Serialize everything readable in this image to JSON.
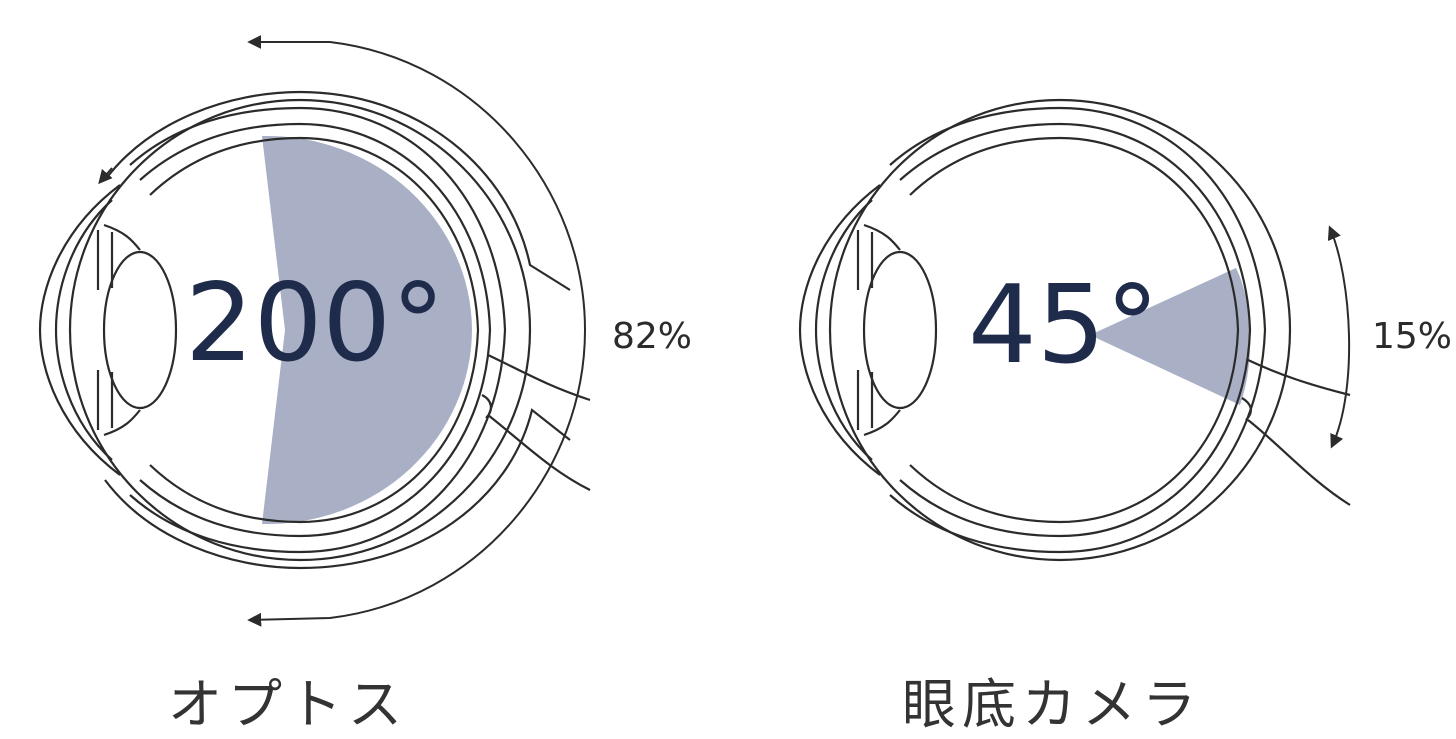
{
  "colors": {
    "line": "#2b2b2b",
    "coverage_fill": "#a9b0c6",
    "angle_text": "#1f2b4a",
    "caption_text": "#333333"
  },
  "panels": [
    {
      "angle_label": "200°",
      "coverage_percent": "82%",
      "caption": "オプトス"
    },
    {
      "angle_label": "45°",
      "coverage_percent": "15%",
      "caption": "眼底カメラ"
    }
  ]
}
